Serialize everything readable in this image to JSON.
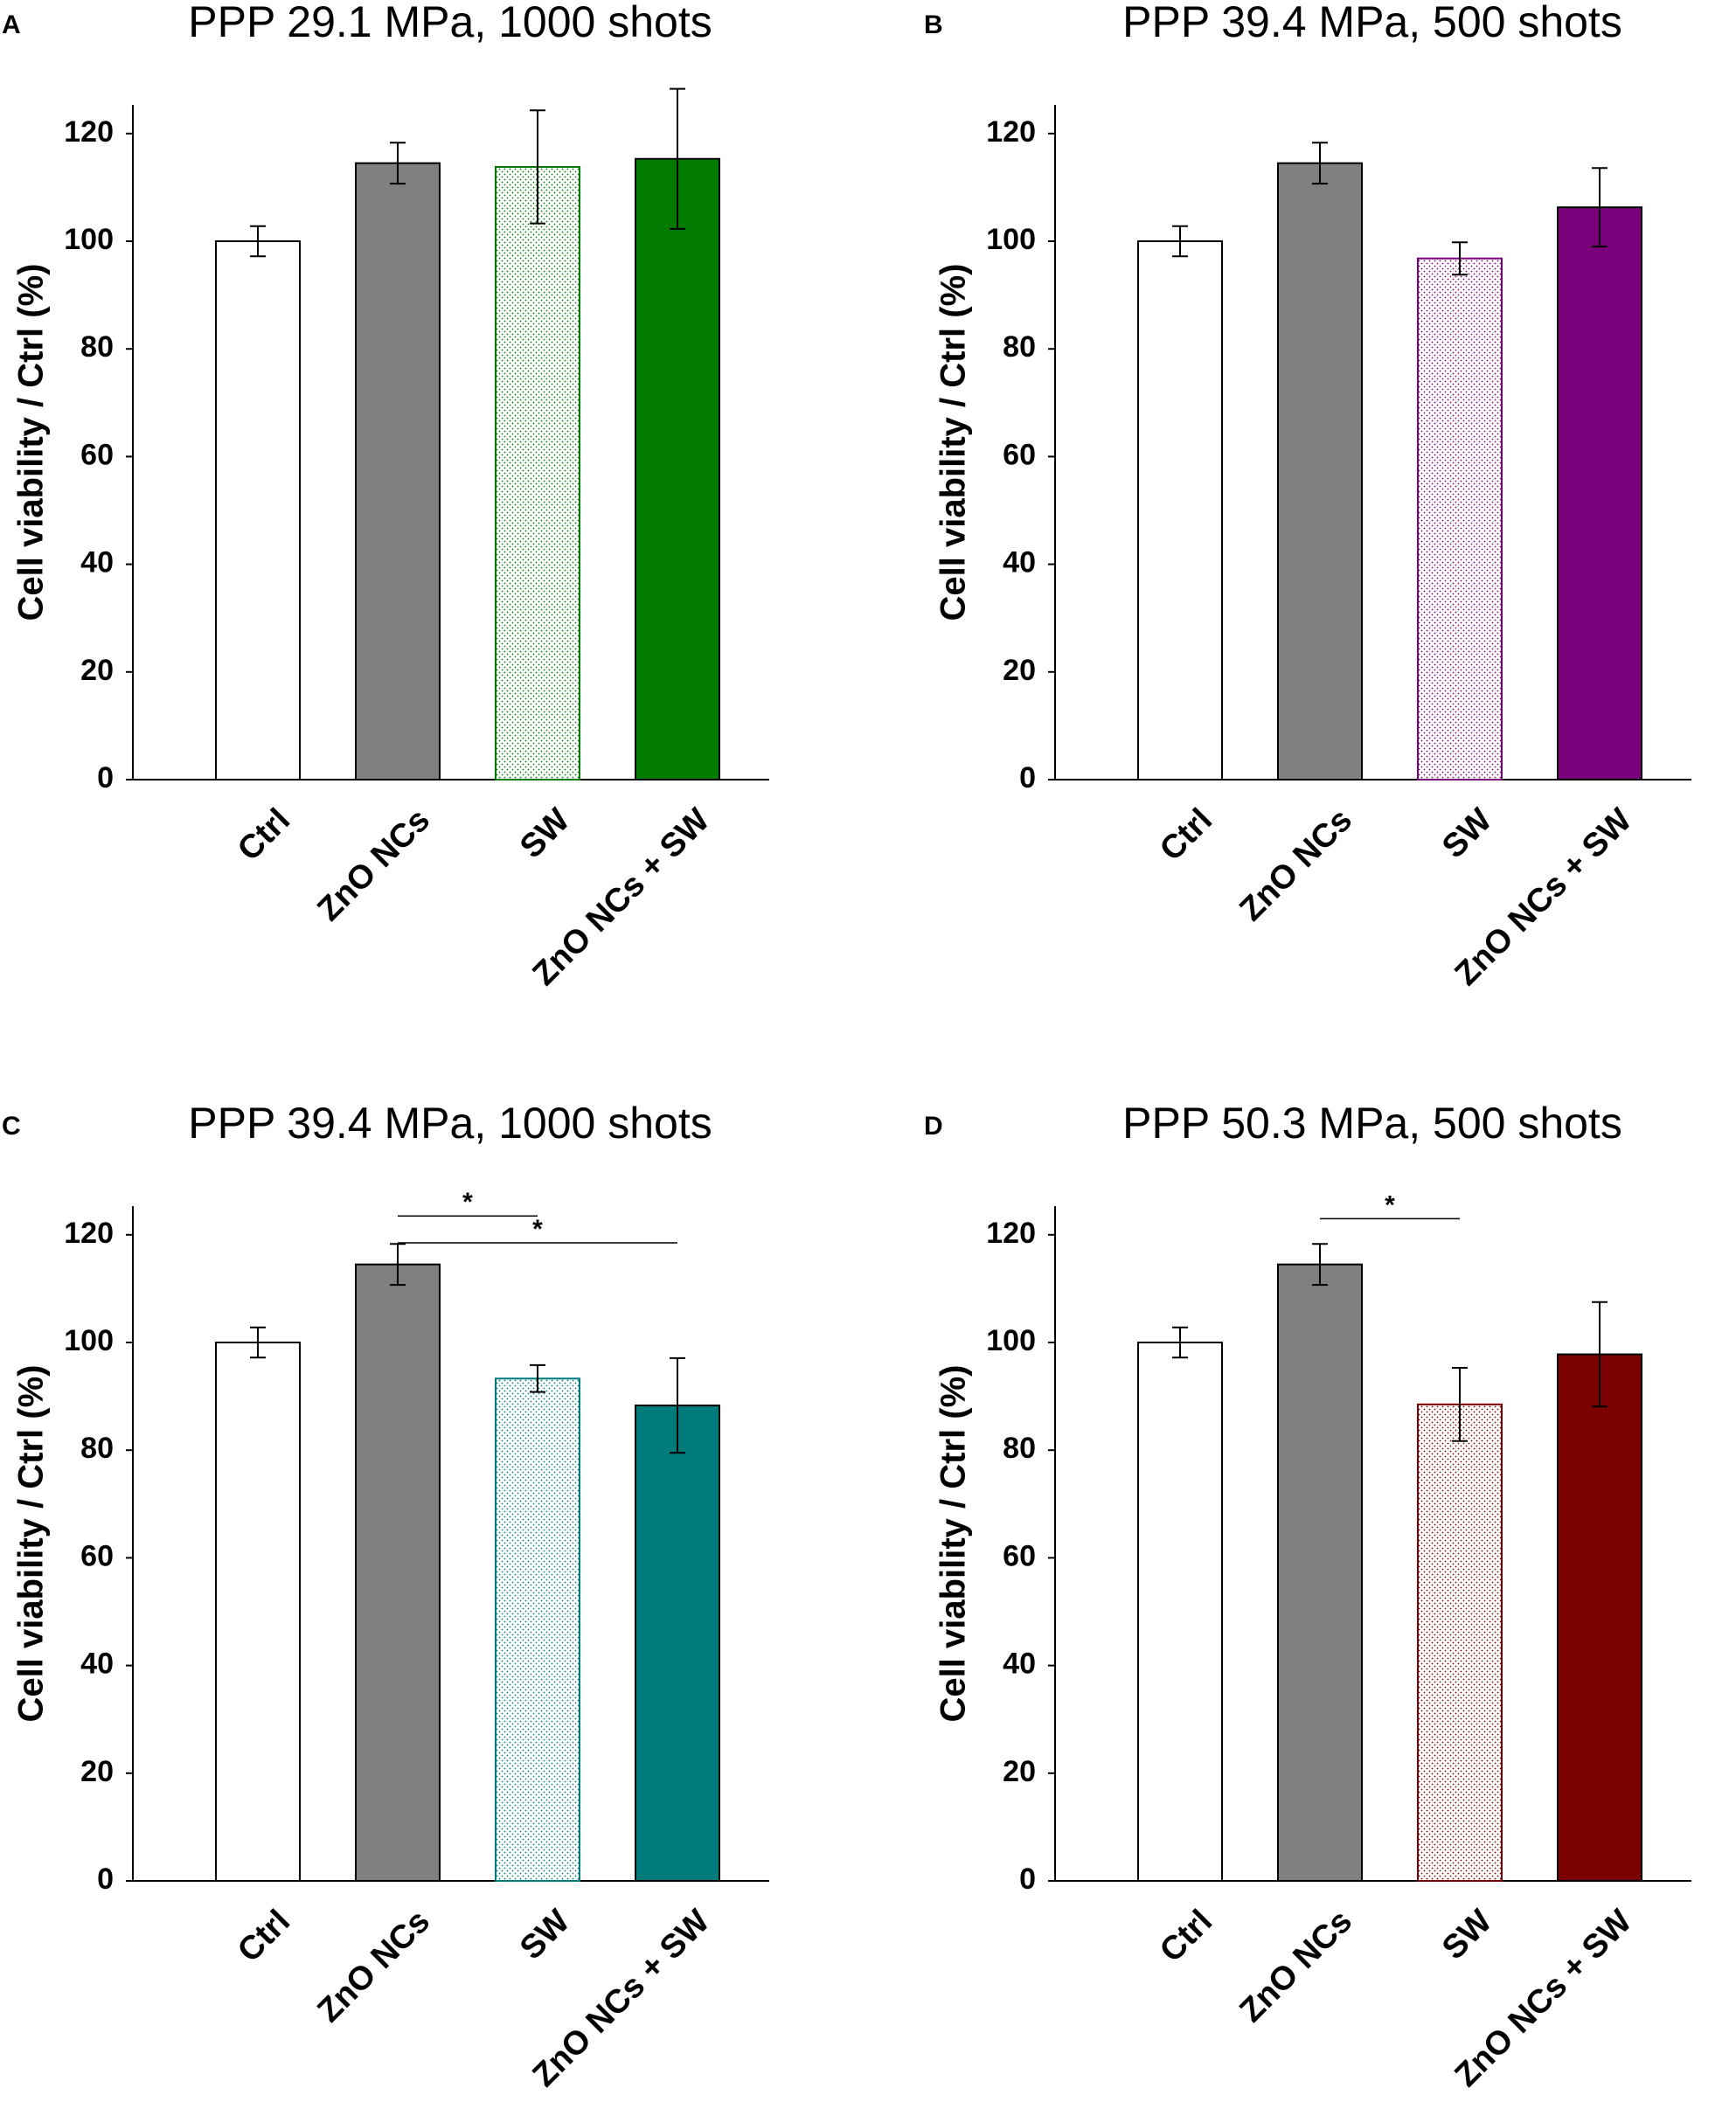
{
  "figure": {
    "y_axis_ticks": [
      0,
      20,
      40,
      60,
      80,
      100,
      120
    ]
  },
  "chart_data": [
    {
      "type": "bar",
      "panel_label": "A",
      "title": "PPP 29.1 MPa, 1000 shots",
      "xlabel": "",
      "ylabel": "Cell viability / Ctrl (%)",
      "ylim": [
        0,
        125
      ],
      "grid": false,
      "categories": [
        "Ctrl",
        "ZnO NCs",
        "SW",
        "ZnO NCs + SW"
      ],
      "values": [
        100,
        114.5,
        113.8,
        115.3
      ],
      "errors": [
        2.8,
        3.8,
        10.5,
        13
      ],
      "fills": [
        "#ffffff",
        "#808080",
        "dotted",
        "#007b00"
      ],
      "accent": "#007b00",
      "significance": []
    },
    {
      "type": "bar",
      "panel_label": "B",
      "title": "PPP 39.4 MPa, 500 shots",
      "xlabel": "",
      "ylabel": "Cell viability / Ctrl (%)",
      "ylim": [
        0,
        125
      ],
      "grid": false,
      "categories": [
        "Ctrl",
        "ZnO NCs",
        "SW",
        "ZnO NCs + SW"
      ],
      "values": [
        100,
        114.5,
        96.8,
        106.3
      ],
      "errors": [
        2.8,
        3.8,
        3,
        7.3
      ],
      "fills": [
        "#ffffff",
        "#808080",
        "dotted",
        "#7b007b"
      ],
      "accent": "#7b007b",
      "significance": []
    },
    {
      "type": "bar",
      "panel_label": "C",
      "title": "PPP 39.4 MPa, 1000 shots",
      "xlabel": "",
      "ylabel": "Cell viability / Ctrl (%)",
      "ylim": [
        0,
        125
      ],
      "grid": false,
      "categories": [
        "Ctrl",
        "ZnO NCs",
        "SW",
        "ZnO NCs + SW"
      ],
      "values": [
        100,
        114.5,
        93.3,
        88.3
      ],
      "errors": [
        2.8,
        3.8,
        2.5,
        8.8
      ],
      "fills": [
        "#ffffff",
        "#808080",
        "dotted",
        "#007b7b"
      ],
      "accent": "#007b7b",
      "significance": [
        {
          "from": 1,
          "to": 2,
          "y": 123.5,
          "label": "*"
        },
        {
          "from": 1,
          "to": 3,
          "y": 118.5,
          "label": "*"
        }
      ]
    },
    {
      "type": "bar",
      "panel_label": "D",
      "title": "PPP 50.3 MPa, 500 shots",
      "xlabel": "",
      "ylabel": "Cell viability / Ctrl (%)",
      "ylim": [
        0,
        125
      ],
      "grid": false,
      "categories": [
        "Ctrl",
        "ZnO NCs",
        "SW",
        "ZnO NCs + SW"
      ],
      "values": [
        100,
        114.5,
        88.5,
        97.8
      ],
      "errors": [
        2.8,
        3.8,
        6.8,
        9.7
      ],
      "fills": [
        "#ffffff",
        "#808080",
        "dotted",
        "#7b0000"
      ],
      "accent": "#7b0000",
      "significance": [
        {
          "from": 1,
          "to": 2,
          "y": 123,
          "label": "*"
        }
      ]
    }
  ]
}
